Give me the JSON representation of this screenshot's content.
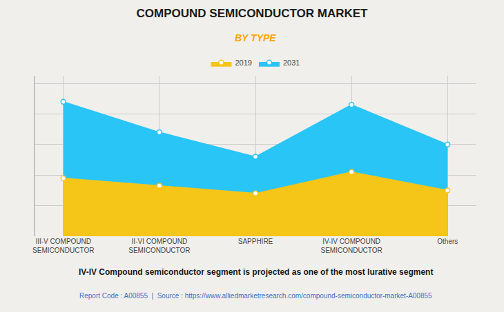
{
  "chart_data": {
    "type": "area",
    "title": "COMPOUND SEMICONDUCTOR MARKET",
    "subtitle": "BY TYPE",
    "categories": [
      "III-V COMPOUND\nSEMICONDUCTOR",
      "II-VI COMPOUND\nSEMICONDUCTOR",
      "SAPPHIRE",
      "IV-IV COMPOUND\nSEMICONDUCTOR",
      "Others"
    ],
    "series": [
      {
        "name": "2019",
        "color": "#F5C518",
        "values": [
          0.38,
          0.33,
          0.28,
          0.42,
          0.3
        ]
      },
      {
        "name": "2031",
        "color": "#29C5F6",
        "values": [
          0.88,
          0.68,
          0.52,
          0.86,
          0.6
        ]
      }
    ],
    "ylim": [
      0,
      1.05
    ],
    "yticks": [
      0,
      0.2,
      0.4,
      0.6,
      0.8,
      1.0
    ],
    "grid": true,
    "tick_labels": "x",
    "marker": "circle",
    "annotations": [
      "IV-IV Compound semiconductor segment is projected as one of the most lurative segment",
      "Report Code : A00855  |  Source : https://www.alliedmarketresearch.com/compound-semiconductor-market-A00855"
    ]
  }
}
